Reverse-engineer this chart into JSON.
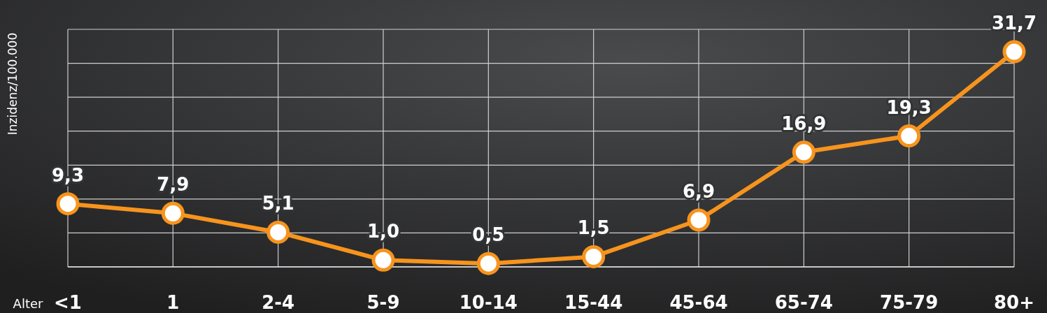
{
  "chart_data": {
    "type": "line",
    "xlabel": "Alter",
    "ylabel": "Inzidenz/100.000",
    "categories": [
      "<1",
      "1",
      "2-4",
      "5-9",
      "10-14",
      "15-44",
      "45-64",
      "65-74",
      "75-79",
      "80+"
    ],
    "series": [
      {
        "color": "#f7941d",
        "values": [
          9.3,
          7.9,
          5.1,
          1.0,
          0.5,
          1.5,
          6.9,
          16.9,
          19.3,
          31.7
        ],
        "value_labels": [
          "9,3",
          "7,9",
          "5,1",
          "1,0",
          "0,5",
          "1,5",
          "6,9",
          "16,9",
          "19,3",
          "31,7"
        ]
      }
    ],
    "ylim": [
      0,
      35
    ],
    "yticks": [
      {
        "value": 0,
        "label": null
      },
      {
        "value": 5,
        "label": null
      },
      {
        "value": 10,
        "label": null
      },
      {
        "value": 15,
        "label": null
      },
      {
        "value": 20,
        "label": null
      },
      {
        "value": 25,
        "label": null
      },
      {
        "value": 30,
        "label": null
      },
      {
        "value": 35,
        "label": null
      }
    ],
    "grid": true,
    "marker": "circle",
    "line_style": "solid",
    "tick_labels": "x"
  }
}
